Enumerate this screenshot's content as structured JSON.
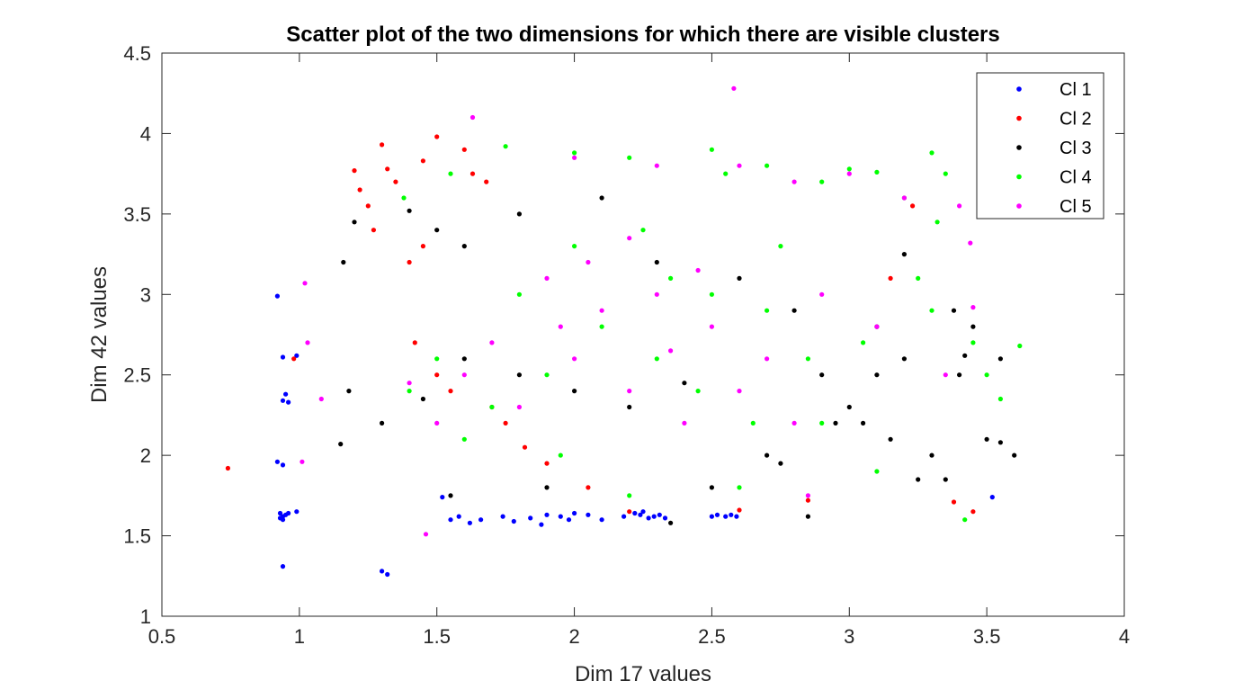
{
  "chart_data": {
    "type": "scatter",
    "title": "Scatter plot of the two dimensions for which there are visible clusters",
    "xlabel": "Dim 17 values",
    "ylabel": "Dim 42 values",
    "xlim": [
      0.5,
      4
    ],
    "ylim": [
      1,
      4.5
    ],
    "xticks": [
      "0.5",
      "1",
      "1.5",
      "2",
      "2.5",
      "3",
      "3.5",
      "4"
    ],
    "yticks": [
      "1",
      "1.5",
      "2",
      "2.5",
      "3",
      "3.5",
      "4",
      "4.5"
    ],
    "grid": false,
    "legend_position": "top-right",
    "series": [
      {
        "name": "Cl 1",
        "color": "#0000ff",
        "points": [
          [
            0.92,
            2.99
          ],
          [
            0.94,
            2.61
          ],
          [
            0.95,
            2.38
          ],
          [
            0.96,
            2.33
          ],
          [
            0.94,
            2.34
          ],
          [
            0.99,
            2.62
          ],
          [
            0.92,
            1.96
          ],
          [
            0.94,
            1.94
          ],
          [
            0.93,
            1.64
          ],
          [
            0.94,
            1.62
          ],
          [
            0.95,
            1.63
          ],
          [
            0.96,
            1.64
          ],
          [
            0.93,
            1.61
          ],
          [
            0.94,
            1.6
          ],
          [
            0.99,
            1.65
          ],
          [
            0.94,
            1.31
          ],
          [
            1.3,
            1.28
          ],
          [
            1.32,
            1.26
          ],
          [
            1.52,
            1.74
          ],
          [
            1.55,
            1.6
          ],
          [
            1.58,
            1.62
          ],
          [
            1.62,
            1.58
          ],
          [
            1.66,
            1.6
          ],
          [
            1.74,
            1.62
          ],
          [
            1.78,
            1.59
          ],
          [
            1.84,
            1.61
          ],
          [
            1.9,
            1.63
          ],
          [
            1.95,
            1.62
          ],
          [
            1.98,
            1.6
          ],
          [
            2.0,
            1.64
          ],
          [
            2.05,
            1.63
          ],
          [
            2.18,
            1.62
          ],
          [
            2.22,
            1.64
          ],
          [
            2.24,
            1.63
          ],
          [
            2.25,
            1.65
          ],
          [
            2.27,
            1.61
          ],
          [
            2.29,
            1.62
          ],
          [
            2.31,
            1.63
          ],
          [
            2.33,
            1.61
          ],
          [
            2.5,
            1.62
          ],
          [
            2.52,
            1.63
          ],
          [
            2.55,
            1.62
          ],
          [
            2.57,
            1.63
          ],
          [
            2.59,
            1.62
          ],
          [
            3.52,
            1.74
          ],
          [
            1.88,
            1.57
          ],
          [
            2.1,
            1.6
          ]
        ]
      },
      {
        "name": "Cl 2",
        "color": "#ff0000",
        "points": [
          [
            0.74,
            1.92
          ],
          [
            0.98,
            2.6
          ],
          [
            1.2,
            3.77
          ],
          [
            1.22,
            3.65
          ],
          [
            1.25,
            3.55
          ],
          [
            1.27,
            3.4
          ],
          [
            1.3,
            3.93
          ],
          [
            1.32,
            3.78
          ],
          [
            1.35,
            3.7
          ],
          [
            1.45,
            3.83
          ],
          [
            1.5,
            3.98
          ],
          [
            1.6,
            3.9
          ],
          [
            1.63,
            3.75
          ],
          [
            1.68,
            3.7
          ],
          [
            3.38,
            1.71
          ],
          [
            3.45,
            1.65
          ],
          [
            3.23,
            3.55
          ],
          [
            3.15,
            3.1
          ],
          [
            2.85,
            1.72
          ],
          [
            2.6,
            1.66
          ],
          [
            2.2,
            1.65
          ],
          [
            1.42,
            2.7
          ],
          [
            1.5,
            2.5
          ],
          [
            1.55,
            2.4
          ],
          [
            1.7,
            2.3
          ],
          [
            1.75,
            2.2
          ],
          [
            1.82,
            2.05
          ],
          [
            1.9,
            1.95
          ],
          [
            2.05,
            1.8
          ],
          [
            1.4,
            3.2
          ],
          [
            1.45,
            3.3
          ]
        ]
      },
      {
        "name": "Cl 3",
        "color": "#000000",
        "points": [
          [
            1.15,
            2.07
          ],
          [
            1.18,
            2.4
          ],
          [
            1.16,
            3.2
          ],
          [
            1.2,
            3.45
          ],
          [
            1.4,
            3.52
          ],
          [
            1.5,
            3.4
          ],
          [
            1.6,
            3.3
          ],
          [
            1.8,
            3.5
          ],
          [
            2.1,
            3.6
          ],
          [
            2.3,
            3.2
          ],
          [
            2.6,
            3.1
          ],
          [
            2.8,
            2.9
          ],
          [
            2.9,
            2.5
          ],
          [
            3.0,
            2.3
          ],
          [
            3.05,
            2.2
          ],
          [
            3.1,
            2.5
          ],
          [
            3.15,
            2.1
          ],
          [
            3.2,
            2.6
          ],
          [
            3.3,
            2.0
          ],
          [
            3.35,
            1.85
          ],
          [
            3.4,
            2.5
          ],
          [
            3.45,
            2.8
          ],
          [
            3.5,
            2.1
          ],
          [
            3.55,
            2.08
          ],
          [
            3.6,
            2.0
          ],
          [
            3.42,
            2.62
          ],
          [
            3.38,
            2.9
          ],
          [
            3.2,
            3.25
          ],
          [
            3.1,
            2.8
          ],
          [
            2.95,
            2.2
          ],
          [
            2.7,
            2.0
          ],
          [
            2.5,
            1.8
          ],
          [
            2.35,
            1.58
          ],
          [
            2.2,
            2.3
          ],
          [
            2.0,
            2.4
          ],
          [
            1.8,
            2.5
          ],
          [
            1.6,
            2.6
          ],
          [
            1.45,
            2.35
          ],
          [
            1.3,
            2.2
          ],
          [
            1.55,
            1.75
          ],
          [
            1.9,
            1.8
          ],
          [
            2.4,
            2.45
          ],
          [
            2.75,
            1.95
          ],
          [
            2.85,
            1.62
          ],
          [
            3.25,
            1.85
          ],
          [
            3.55,
            2.6
          ]
        ]
      },
      {
        "name": "Cl 4",
        "color": "#00ff00",
        "points": [
          [
            1.38,
            3.6
          ],
          [
            1.55,
            3.75
          ],
          [
            1.75,
            3.92
          ],
          [
            2.0,
            3.88
          ],
          [
            2.2,
            3.85
          ],
          [
            2.5,
            3.9
          ],
          [
            2.55,
            3.75
          ],
          [
            2.7,
            3.8
          ],
          [
            2.9,
            3.7
          ],
          [
            3.0,
            3.78
          ],
          [
            3.1,
            3.76
          ],
          [
            3.2,
            3.6
          ],
          [
            3.3,
            3.88
          ],
          [
            3.35,
            3.75
          ],
          [
            3.32,
            3.45
          ],
          [
            3.25,
            3.1
          ],
          [
            3.3,
            2.9
          ],
          [
            3.45,
            2.7
          ],
          [
            3.5,
            2.5
          ],
          [
            3.55,
            2.35
          ],
          [
            3.62,
            2.68
          ],
          [
            3.42,
            1.6
          ],
          [
            3.1,
            1.9
          ],
          [
            2.9,
            2.2
          ],
          [
            2.7,
            2.9
          ],
          [
            2.5,
            3.0
          ],
          [
            2.3,
            2.6
          ],
          [
            2.1,
            2.8
          ],
          [
            1.9,
            2.5
          ],
          [
            1.7,
            2.3
          ],
          [
            1.6,
            2.1
          ],
          [
            1.5,
            2.6
          ],
          [
            1.4,
            2.4
          ],
          [
            1.8,
            3.0
          ],
          [
            2.0,
            3.3
          ],
          [
            2.25,
            3.4
          ],
          [
            2.45,
            2.4
          ],
          [
            2.65,
            2.2
          ],
          [
            2.85,
            2.6
          ],
          [
            3.05,
            2.7
          ],
          [
            2.6,
            1.8
          ],
          [
            2.2,
            1.75
          ],
          [
            1.95,
            2.0
          ],
          [
            2.35,
            3.1
          ],
          [
            2.75,
            3.3
          ]
        ]
      },
      {
        "name": "Cl 5",
        "color": "#ff00ff",
        "points": [
          [
            1.02,
            3.07
          ],
          [
            1.03,
            2.7
          ],
          [
            1.08,
            2.35
          ],
          [
            1.01,
            1.96
          ],
          [
            1.63,
            4.1
          ],
          [
            2.58,
            4.28
          ],
          [
            2.0,
            3.85
          ],
          [
            2.3,
            3.8
          ],
          [
            2.6,
            3.8
          ],
          [
            2.8,
            3.7
          ],
          [
            3.0,
            3.75
          ],
          [
            3.2,
            3.6
          ],
          [
            3.4,
            3.55
          ],
          [
            3.44,
            3.32
          ],
          [
            3.45,
            2.92
          ],
          [
            3.35,
            2.5
          ],
          [
            3.1,
            2.8
          ],
          [
            2.9,
            3.0
          ],
          [
            2.7,
            2.6
          ],
          [
            2.5,
            2.8
          ],
          [
            2.3,
            3.0
          ],
          [
            2.1,
            2.9
          ],
          [
            1.9,
            3.1
          ],
          [
            1.7,
            2.7
          ],
          [
            1.6,
            2.5
          ],
          [
            1.5,
            2.2
          ],
          [
            1.4,
            2.45
          ],
          [
            1.8,
            2.3
          ],
          [
            2.0,
            2.6
          ],
          [
            2.2,
            2.4
          ],
          [
            2.4,
            2.2
          ],
          [
            2.6,
            2.4
          ],
          [
            2.8,
            2.2
          ],
          [
            1.46,
            1.51
          ],
          [
            2.2,
            3.35
          ],
          [
            2.05,
            3.2
          ],
          [
            1.95,
            2.8
          ],
          [
            2.45,
            3.15
          ],
          [
            2.85,
            1.75
          ],
          [
            2.35,
            2.65
          ]
        ]
      }
    ]
  }
}
